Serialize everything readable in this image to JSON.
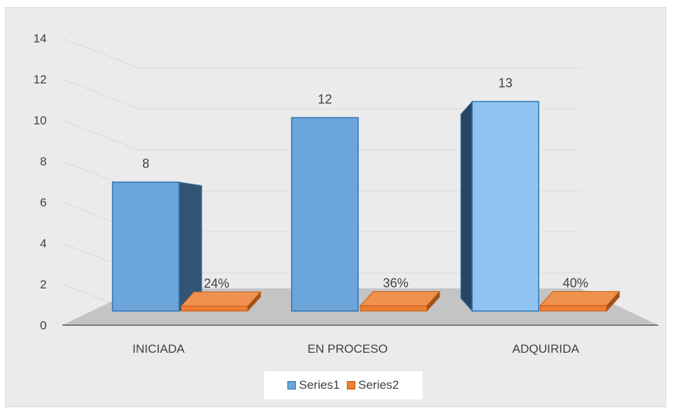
{
  "chart_data": {
    "type": "bar",
    "categories": [
      "INICIADA",
      "EN PROCESO",
      "ADQUIRIDA"
    ],
    "series": [
      {
        "name": "Series1",
        "values": [
          8,
          12,
          13
        ],
        "labels": [
          "8",
          "12",
          "13"
        ],
        "color": "#5b9bd5"
      },
      {
        "name": "Series2",
        "values": [
          0.24,
          0.36,
          0.4
        ],
        "labels": [
          "24%",
          "36%",
          "40%"
        ],
        "color": "#ed7d31"
      }
    ],
    "yticks": [
      "0",
      "2",
      "4",
      "6",
      "8",
      "10",
      "12",
      "14"
    ],
    "ylim": [
      0,
      14
    ],
    "grid": true,
    "legend_position": "bottom",
    "style": "3d-column"
  }
}
